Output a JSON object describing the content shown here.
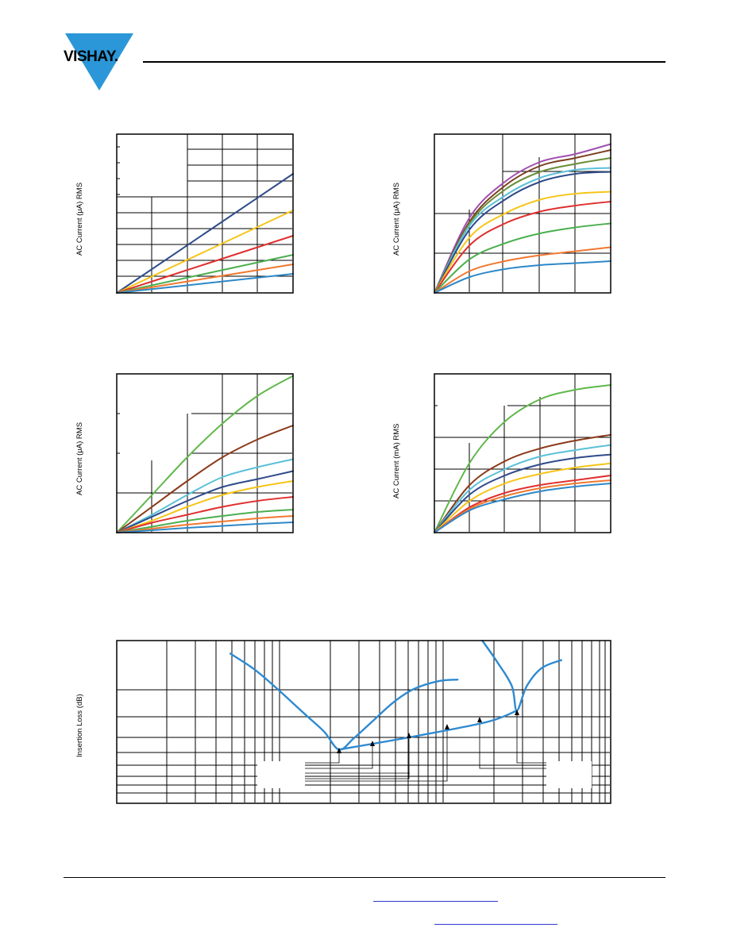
{
  "header": {
    "logo_text": "VISHAY.",
    "logo_color": "#2b97d8"
  },
  "colors": {
    "navy": "#2f4b8a",
    "yellow": "#f5c518",
    "red": "#e03030",
    "green": "#4caf50",
    "orange": "#f07830",
    "blue": "#2e88c8",
    "cyan": "#5bc0d8",
    "brown": "#8b3a1a",
    "olive": "#6a8e3a",
    "purple": "#a050b0",
    "ltgreen": "#5fb84a",
    "darkbrown": "#7a4020",
    "loss": "#2e8ad0"
  },
  "chart_data": [
    {
      "type": "line",
      "ylabel": "AC Current (μA) RMS",
      "xlim": [
        0,
        5
      ],
      "ylim": [
        0,
        10
      ],
      "series": [
        {
          "color": "navy",
          "x": [
            0,
            5
          ],
          "y": [
            0,
            7.5
          ]
        },
        {
          "color": "yellow",
          "x": [
            0,
            5
          ],
          "y": [
            0,
            5.2
          ]
        },
        {
          "color": "red",
          "x": [
            0,
            5
          ],
          "y": [
            0,
            3.6
          ]
        },
        {
          "color": "green",
          "x": [
            0,
            5
          ],
          "y": [
            0,
            2.4
          ]
        },
        {
          "color": "orange",
          "x": [
            0,
            5
          ],
          "y": [
            0,
            1.8
          ]
        },
        {
          "color": "blue",
          "x": [
            0,
            5
          ],
          "y": [
            0,
            1.2
          ]
        }
      ]
    },
    {
      "type": "line",
      "ylabel": "AC Current (μA) RMS",
      "xlim": [
        0,
        5
      ],
      "ylim": [
        0,
        4
      ],
      "series": [
        {
          "color": "purple",
          "x": [
            0,
            1,
            2,
            3,
            4,
            5
          ],
          "y": [
            0,
            1.9,
            2.8,
            3.3,
            3.5,
            3.75
          ]
        },
        {
          "color": "darkbrown",
          "x": [
            0,
            1,
            2,
            3,
            4,
            5
          ],
          "y": [
            0,
            1.8,
            2.7,
            3.2,
            3.4,
            3.6
          ]
        },
        {
          "color": "olive",
          "x": [
            0,
            1,
            2,
            3,
            4,
            5
          ],
          "y": [
            0,
            1.75,
            2.6,
            3.05,
            3.25,
            3.4
          ]
        },
        {
          "color": "cyan",
          "x": [
            0,
            1,
            2,
            3,
            4,
            5
          ],
          "y": [
            0,
            1.7,
            2.45,
            2.9,
            3.1,
            3.15
          ]
        },
        {
          "color": "navy",
          "x": [
            0,
            1,
            2,
            3,
            4,
            5
          ],
          "y": [
            0,
            1.6,
            2.35,
            2.8,
            3.0,
            3.05
          ]
        },
        {
          "color": "yellow",
          "x": [
            0,
            1,
            2,
            3,
            4,
            5
          ],
          "y": [
            0,
            1.4,
            2.0,
            2.35,
            2.5,
            2.55
          ]
        },
        {
          "color": "red",
          "x": [
            0,
            1,
            2,
            3,
            4,
            5
          ],
          "y": [
            0,
            1.2,
            1.75,
            2.05,
            2.2,
            2.3
          ]
        },
        {
          "color": "green",
          "x": [
            0,
            1,
            2,
            3,
            4,
            5
          ],
          "y": [
            0,
            0.85,
            1.25,
            1.5,
            1.65,
            1.75
          ]
        },
        {
          "color": "orange",
          "x": [
            0,
            1,
            2,
            3,
            4,
            5
          ],
          "y": [
            0,
            0.55,
            0.8,
            0.95,
            1.05,
            1.15
          ]
        },
        {
          "color": "blue",
          "x": [
            0,
            1,
            2,
            3,
            4,
            5
          ],
          "y": [
            0,
            0.4,
            0.6,
            0.7,
            0.75,
            0.8
          ]
        }
      ]
    },
    {
      "type": "line",
      "ylabel": "AC Current (μA) RMS",
      "xlim": [
        0,
        5
      ],
      "ylim": [
        0,
        4
      ],
      "series": [
        {
          "color": "ltgreen",
          "x": [
            0,
            1,
            2,
            3,
            4,
            5
          ],
          "y": [
            0,
            0.95,
            1.9,
            2.75,
            3.45,
            3.95
          ]
        },
        {
          "color": "brown",
          "x": [
            0,
            1,
            2,
            3,
            4,
            5
          ],
          "y": [
            0,
            0.65,
            1.3,
            1.9,
            2.35,
            2.7
          ]
        },
        {
          "color": "cyan",
          "x": [
            0,
            1,
            2,
            3,
            4,
            5
          ],
          "y": [
            0,
            0.45,
            0.95,
            1.4,
            1.65,
            1.85
          ]
        },
        {
          "color": "navy",
          "x": [
            0,
            1,
            2,
            3,
            4,
            5
          ],
          "y": [
            0,
            0.4,
            0.8,
            1.15,
            1.35,
            1.55
          ]
        },
        {
          "color": "yellow",
          "x": [
            0,
            1,
            2,
            3,
            4,
            5
          ],
          "y": [
            0,
            0.3,
            0.65,
            0.95,
            1.15,
            1.3
          ]
        },
        {
          "color": "red",
          "x": [
            0,
            1,
            2,
            3,
            4,
            5
          ],
          "y": [
            0,
            0.25,
            0.45,
            0.65,
            0.8,
            0.9
          ]
        },
        {
          "color": "green",
          "x": [
            0,
            1,
            2,
            3,
            4,
            5
          ],
          "y": [
            0,
            0.15,
            0.3,
            0.42,
            0.52,
            0.58
          ]
        },
        {
          "color": "orange",
          "x": [
            0,
            1,
            2,
            3,
            4,
            5
          ],
          "y": [
            0,
            0.1,
            0.2,
            0.28,
            0.36,
            0.42
          ]
        },
        {
          "color": "blue",
          "x": [
            0,
            1,
            2,
            3,
            4,
            5
          ],
          "y": [
            0,
            0.06,
            0.12,
            0.17,
            0.22,
            0.26
          ]
        }
      ]
    },
    {
      "type": "line",
      "ylabel": "AC Current (mA) RMS",
      "xlim": [
        0,
        5
      ],
      "ylim": [
        0,
        5
      ],
      "series": [
        {
          "color": "ltgreen",
          "x": [
            0,
            1,
            2,
            3,
            4,
            5
          ],
          "y": [
            0,
            2.2,
            3.5,
            4.2,
            4.5,
            4.65
          ]
        },
        {
          "color": "brown",
          "x": [
            0,
            1,
            2,
            3,
            4,
            5
          ],
          "y": [
            0,
            1.5,
            2.25,
            2.65,
            2.9,
            3.08
          ]
        },
        {
          "color": "cyan",
          "x": [
            0,
            1,
            2,
            3,
            4,
            5
          ],
          "y": [
            0,
            1.35,
            2.0,
            2.4,
            2.6,
            2.76
          ]
        },
        {
          "color": "navy",
          "x": [
            0,
            1,
            2,
            3,
            4,
            5
          ],
          "y": [
            0,
            1.2,
            1.8,
            2.15,
            2.35,
            2.46
          ]
        },
        {
          "color": "yellow",
          "x": [
            0,
            1,
            2,
            3,
            4,
            5
          ],
          "y": [
            0,
            1.0,
            1.55,
            1.85,
            2.05,
            2.18
          ]
        },
        {
          "color": "red",
          "x": [
            0,
            1,
            2,
            3,
            4,
            5
          ],
          "y": [
            0,
            0.8,
            1.25,
            1.5,
            1.65,
            1.8
          ]
        },
        {
          "color": "orange",
          "x": [
            0,
            1,
            2,
            3,
            4,
            5
          ],
          "y": [
            0,
            0.75,
            1.15,
            1.4,
            1.55,
            1.65
          ]
        },
        {
          "color": "blue",
          "x": [
            0,
            1,
            2,
            3,
            4,
            5
          ],
          "y": [
            0,
            0.7,
            1.05,
            1.3,
            1.45,
            1.55
          ]
        }
      ]
    },
    {
      "type": "line",
      "ylabel": "Insertion Loss (dB)",
      "xlim": [
        0,
        100
      ],
      "ylim": [
        0,
        100
      ],
      "series": [
        {
          "color": "loss",
          "x": [
            23,
            28,
            33,
            38,
            42,
            45,
            48,
            52,
            56,
            60,
            65,
            69
          ],
          "y": [
            92,
            82,
            69,
            55,
            44,
            33,
            40,
            51,
            62,
            70,
            75,
            76
          ]
        },
        {
          "color": "loss",
          "x": [
            45,
            60,
            75,
            81
          ],
          "y": [
            33,
            41,
            50,
            57
          ]
        },
        {
          "color": "loss",
          "x": [
            74,
            77,
            80,
            81,
            83,
            86,
            90
          ],
          "y": [
            100,
            87,
            72,
            57,
            72,
            83,
            88
          ]
        }
      ]
    }
  ]
}
